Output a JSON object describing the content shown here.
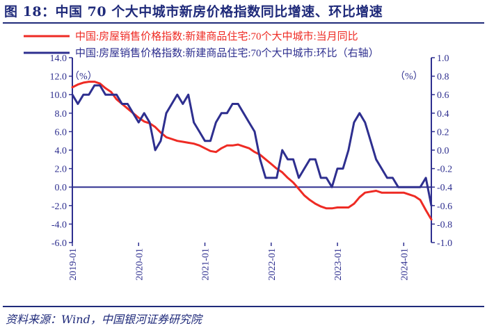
{
  "header": {
    "title": "图 18：中国 70 个大中城市新房价格指数同比增速、环比增速"
  },
  "footer": {
    "source": "资料来源：Wind，中国银河证券研究院"
  },
  "colors": {
    "series_yoy": "#ee2b24",
    "series_mom": "#2e2f8f",
    "axis": "#2e2f8f",
    "title": "#1f2a7a"
  },
  "chart_data": {
    "type": "line",
    "legend_position": "top",
    "x_tick_labels": [
      "2019-01",
      "2020-01",
      "2021-01",
      "2022-01",
      "2023-01",
      "2024-01"
    ],
    "x_range": [
      0,
      65
    ],
    "y_left": {
      "range": [
        -6.0,
        14.0
      ],
      "ticks": [
        -6.0,
        -4.0,
        -2.0,
        0.0,
        2.0,
        4.0,
        6.0,
        8.0,
        10.0,
        12.0,
        14.0
      ],
      "tick_labels": [
        "-6.0",
        "-4.0",
        "-2.0",
        "0.0",
        "2.0",
        "4.0",
        "6.0",
        "8.0",
        "10.0",
        "12.0",
        "14.0"
      ],
      "unit_label": "（%）"
    },
    "y_right": {
      "range": [
        -1.0,
        1.0
      ],
      "ticks": [
        -1.0,
        -0.8,
        -0.6,
        -0.4,
        -0.2,
        0.0,
        0.2,
        0.4,
        0.6,
        0.8,
        1.0
      ],
      "tick_labels": [
        "-1.0",
        "-0.8",
        "-0.6",
        "-0.4",
        "-0.2",
        "0.0",
        "0.2",
        "0.4",
        "0.6",
        "0.8",
        "1.0"
      ],
      "unit_label": "（%）"
    },
    "series": [
      {
        "name": "中国:房屋销售价格指数:新建商品住宅:70个大中城市:当月同比",
        "axis": "left",
        "x_start": 0,
        "values": [
          10.8,
          11.1,
          11.3,
          11.4,
          11.4,
          11.2,
          10.7,
          10.3,
          9.5,
          9.0,
          8.5,
          8.0,
          7.5,
          7.1,
          6.9,
          6.5,
          5.9,
          5.4,
          5.2,
          5.0,
          4.9,
          4.8,
          4.7,
          4.5,
          4.2,
          3.9,
          3.8,
          4.2,
          4.5,
          4.5,
          4.6,
          4.4,
          4.2,
          3.8,
          3.5,
          3.0,
          2.5,
          2.0,
          1.6,
          1.0,
          0.5,
          -0.2,
          -0.9,
          -1.4,
          -1.8,
          -2.1,
          -2.3,
          -2.3,
          -2.2,
          -2.2,
          -2.2,
          -1.8,
          -1.1,
          -0.6,
          -0.5,
          -0.4,
          -0.6,
          -0.6,
          -0.6,
          -0.6,
          -0.6,
          -0.8,
          -1.0,
          -1.4,
          -2.5,
          -3.5
        ]
      },
      {
        "name": "中国:房屋销售价格指数:新建商品住宅:70个大中城市:环比（右轴）",
        "axis": "right",
        "x_start": 0,
        "values": [
          0.6,
          0.5,
          0.6,
          0.6,
          0.7,
          0.7,
          0.6,
          0.6,
          0.6,
          0.5,
          0.5,
          0.4,
          0.3,
          0.4,
          0.3,
          0.0,
          0.1,
          0.4,
          0.5,
          0.6,
          0.5,
          0.6,
          0.3,
          0.2,
          0.1,
          0.1,
          0.3,
          0.4,
          0.4,
          0.5,
          0.5,
          0.4,
          0.3,
          0.2,
          -0.1,
          -0.3,
          -0.3,
          -0.3,
          0.0,
          -0.1,
          -0.1,
          -0.3,
          -0.2,
          -0.1,
          -0.1,
          -0.3,
          -0.3,
          -0.4,
          -0.2,
          -0.2,
          0.0,
          0.3,
          0.4,
          0.3,
          0.1,
          -0.1,
          -0.2,
          -0.3,
          -0.3,
          -0.4,
          -0.4,
          -0.4,
          -0.4,
          -0.4,
          -0.3,
          -0.6
        ]
      }
    ]
  }
}
